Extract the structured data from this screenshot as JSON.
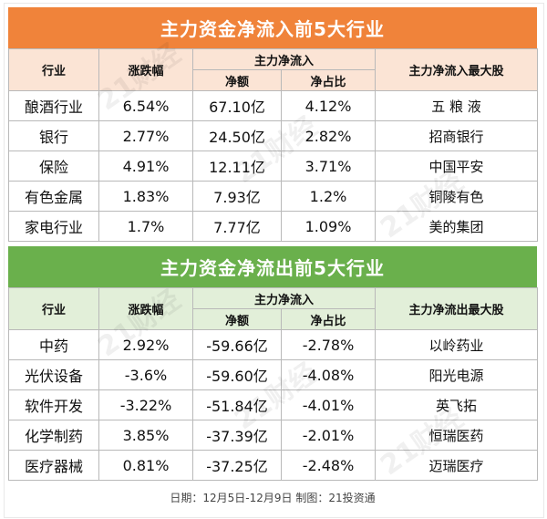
{
  "inflow": {
    "title": "主力资金净流入前5大行业",
    "headers": {
      "industry": "行业",
      "change": "涨跌幅",
      "group": "主力净流入",
      "net": "净额",
      "ratio": "净占比",
      "top_stock": "主力净流入最大股"
    },
    "rows": [
      {
        "industry": "酿酒行业",
        "change": "6.54%",
        "net": "67.10亿",
        "ratio": "4.12%",
        "stock": "五 粮 液"
      },
      {
        "industry": "银行",
        "change": "2.77%",
        "net": "24.50亿",
        "ratio": "2.82%",
        "stock": "招商银行"
      },
      {
        "industry": "保险",
        "change": "4.91%",
        "net": "12.11亿",
        "ratio": "3.71%",
        "stock": "中国平安"
      },
      {
        "industry": "有色金属",
        "change": "1.83%",
        "net": "7.93亿",
        "ratio": "1.2%",
        "stock": "铜陵有色"
      },
      {
        "industry": "家电行业",
        "change": "1.7%",
        "net": "7.77亿",
        "ratio": "1.09%",
        "stock": "美的集团"
      }
    ]
  },
  "outflow": {
    "title": "主力资金净流出前5大行业",
    "headers": {
      "industry": "行业",
      "change": "涨跌幅",
      "group": "主力净流入",
      "net": "净额",
      "ratio": "净占比",
      "top_stock": "主力净流出最大股"
    },
    "rows": [
      {
        "industry": "中药",
        "change": "2.92%",
        "net": "-59.66亿",
        "ratio": "-2.78%",
        "stock": "以岭药业"
      },
      {
        "industry": "光伏设备",
        "change": "-3.6%",
        "net": "-59.60亿",
        "ratio": "-4.08%",
        "stock": "阳光电源"
      },
      {
        "industry": "软件开发",
        "change": "-3.22%",
        "net": "-51.84亿",
        "ratio": "-4.01%",
        "stock": "英飞拓"
      },
      {
        "industry": "化学制药",
        "change": "3.85%",
        "net": "-37.39亿",
        "ratio": "-2.01%",
        "stock": "恒瑞医药"
      },
      {
        "industry": "医疗器械",
        "change": "0.81%",
        "net": "-37.25亿",
        "ratio": "-2.48%",
        "stock": "迈瑞医疗"
      }
    ]
  },
  "footer": "日期：12月5日-12月9日 制图：21投资通",
  "watermark": "21财经"
}
